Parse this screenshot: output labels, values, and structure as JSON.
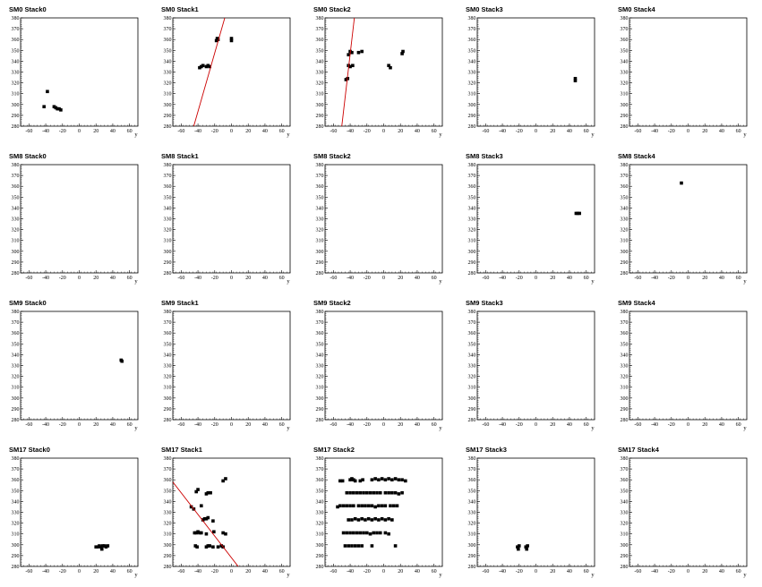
{
  "chart_data": [
    {
      "title": "SM0 Stack0",
      "type": "scatter",
      "xlabel": "y",
      "ylabel": "",
      "xlim": [
        -70,
        70
      ],
      "ylim": [
        280,
        380
      ],
      "xticks": [
        -60,
        -40,
        -20,
        0,
        20,
        40,
        60
      ],
      "yticks": [
        280,
        290,
        300,
        310,
        320,
        330,
        340,
        350,
        360,
        370,
        380
      ],
      "points": [
        [
          -38,
          312
        ],
        [
          -42,
          298
        ],
        [
          -30,
          298
        ],
        [
          -28,
          297
        ],
        [
          -26,
          296
        ],
        [
          -24,
          296
        ],
        [
          -22,
          295
        ]
      ],
      "fit": null
    },
    {
      "title": "SM0 Stack1",
      "type": "scatter",
      "xlabel": "y",
      "ylabel": "",
      "xlim": [
        -70,
        70
      ],
      "ylim": [
        280,
        380
      ],
      "xticks": [
        -60,
        -40,
        -20,
        0,
        20,
        40,
        60
      ],
      "yticks": [
        280,
        290,
        300,
        310,
        320,
        330,
        340,
        350,
        360,
        370,
        380
      ],
      "points": [
        [
          -18,
          359
        ],
        [
          -17,
          361
        ],
        [
          -16,
          360
        ],
        [
          0,
          359
        ],
        [
          0,
          361
        ],
        [
          -38,
          334
        ],
        [
          -36,
          335
        ],
        [
          -34,
          336
        ],
        [
          -30,
          335
        ],
        [
          -28,
          336
        ],
        [
          -26,
          335
        ]
      ],
      "fit": {
        "x1": -45,
        "y1": 280,
        "x2": -8,
        "y2": 380
      }
    },
    {
      "title": "SM0 Stack2",
      "type": "scatter",
      "xlabel": "y",
      "ylabel": "",
      "xlim": [
        -70,
        70
      ],
      "ylim": [
        280,
        380
      ],
      "xticks": [
        -60,
        -40,
        -20,
        0,
        20,
        40,
        60
      ],
      "yticks": [
        280,
        290,
        300,
        310,
        320,
        330,
        340,
        350,
        360,
        370,
        380
      ],
      "points": [
        [
          -42,
          346
        ],
        [
          -40,
          349
        ],
        [
          -38,
          348
        ],
        [
          -30,
          348
        ],
        [
          -26,
          349
        ],
        [
          -42,
          336
        ],
        [
          -40,
          335
        ],
        [
          -37,
          336
        ],
        [
          -45,
          323
        ],
        [
          -43,
          324
        ],
        [
          6,
          336
        ],
        [
          8,
          334
        ],
        [
          22,
          347
        ],
        [
          23,
          349
        ]
      ],
      "fit": {
        "x1": -50,
        "y1": 280,
        "x2": -35,
        "y2": 380
      }
    },
    {
      "title": "SM0 Stack3",
      "type": "scatter",
      "xlabel": "y",
      "ylabel": "",
      "xlim": [
        -70,
        70
      ],
      "ylim": [
        280,
        380
      ],
      "xticks": [
        -60,
        -40,
        -20,
        0,
        20,
        40,
        60
      ],
      "yticks": [
        280,
        290,
        300,
        310,
        320,
        330,
        340,
        350,
        360,
        370,
        380
      ],
      "points": [
        [
          47,
          322
        ],
        [
          47,
          324
        ]
      ],
      "fit": null
    },
    {
      "title": "SM0 Stack4",
      "type": "scatter",
      "xlabel": "y",
      "ylabel": "",
      "xlim": [
        -70,
        70
      ],
      "ylim": [
        280,
        380
      ],
      "xticks": [
        -60,
        -40,
        -20,
        0,
        20,
        40,
        60
      ],
      "yticks": [
        280,
        290,
        300,
        310,
        320,
        330,
        340,
        350,
        360,
        370,
        380
      ],
      "points": [],
      "fit": null
    },
    {
      "title": "SM8 Stack0",
      "type": "scatter",
      "xlabel": "y",
      "ylabel": "",
      "xlim": [
        -70,
        70
      ],
      "ylim": [
        280,
        380
      ],
      "xticks": [
        -60,
        -40,
        -20,
        0,
        20,
        40,
        60
      ],
      "yticks": [
        280,
        290,
        300,
        310,
        320,
        330,
        340,
        350,
        360,
        370,
        380
      ],
      "points": [],
      "fit": null
    },
    {
      "title": "SM8 Stack1",
      "type": "scatter",
      "xlabel": "y",
      "ylabel": "",
      "xlim": [
        -70,
        70
      ],
      "ylim": [
        280,
        380
      ],
      "xticks": [
        -60,
        -40,
        -20,
        0,
        20,
        40,
        60
      ],
      "yticks": [
        280,
        290,
        300,
        310,
        320,
        330,
        340,
        350,
        360,
        370,
        380
      ],
      "points": [],
      "fit": null
    },
    {
      "title": "SM8 Stack2",
      "type": "scatter",
      "xlabel": "y",
      "ylabel": "",
      "xlim": [
        -70,
        70
      ],
      "ylim": [
        280,
        380
      ],
      "xticks": [
        -60,
        -40,
        -20,
        0,
        20,
        40,
        60
      ],
      "yticks": [
        280,
        290,
        300,
        310,
        320,
        330,
        340,
        350,
        360,
        370,
        380
      ],
      "points": [],
      "fit": null
    },
    {
      "title": "SM8 Stack3",
      "type": "scatter",
      "xlabel": "y",
      "ylabel": "",
      "xlim": [
        -70,
        70
      ],
      "ylim": [
        280,
        380
      ],
      "xticks": [
        -60,
        -40,
        -20,
        0,
        20,
        40,
        60
      ],
      "yticks": [
        280,
        290,
        300,
        310,
        320,
        330,
        340,
        350,
        360,
        370,
        380
      ],
      "points": [
        [
          48,
          335
        ],
        [
          50,
          335
        ],
        [
          52,
          335
        ]
      ],
      "fit": null
    },
    {
      "title": "SM8 Stack4",
      "type": "scatter",
      "xlabel": "y",
      "ylabel": "",
      "xlim": [
        -70,
        70
      ],
      "ylim": [
        280,
        380
      ],
      "xticks": [
        -60,
        -40,
        -20,
        0,
        20,
        40,
        60
      ],
      "yticks": [
        280,
        290,
        300,
        310,
        320,
        330,
        340,
        350,
        360,
        370,
        380
      ],
      "points": [
        [
          -8,
          363
        ]
      ],
      "fit": null
    },
    {
      "title": "SM9 Stack0",
      "type": "scatter",
      "xlabel": "y",
      "ylabel": "",
      "xlim": [
        -70,
        70
      ],
      "ylim": [
        280,
        380
      ],
      "xticks": [
        -60,
        -40,
        -20,
        0,
        20,
        40,
        60
      ],
      "yticks": [
        280,
        290,
        300,
        310,
        320,
        330,
        340,
        350,
        360,
        370,
        380
      ],
      "points": [
        [
          50,
          335
        ],
        [
          51,
          334
        ]
      ],
      "fit": null
    },
    {
      "title": "SM9 Stack1",
      "type": "scatter",
      "xlabel": "y",
      "ylabel": "",
      "xlim": [
        -70,
        70
      ],
      "ylim": [
        280,
        380
      ],
      "xticks": [
        -60,
        -40,
        -20,
        0,
        20,
        40,
        60
      ],
      "yticks": [
        280,
        290,
        300,
        310,
        320,
        330,
        340,
        350,
        360,
        370,
        380
      ],
      "points": [],
      "fit": null
    },
    {
      "title": "SM9 Stack2",
      "type": "scatter",
      "xlabel": "y",
      "ylabel": "",
      "xlim": [
        -70,
        70
      ],
      "ylim": [
        280,
        380
      ],
      "xticks": [
        -60,
        -40,
        -20,
        0,
        20,
        40,
        60
      ],
      "yticks": [
        280,
        290,
        300,
        310,
        320,
        330,
        340,
        350,
        360,
        370,
        380
      ],
      "points": [],
      "fit": null
    },
    {
      "title": "SM9 Stack3",
      "type": "scatter",
      "xlabel": "y",
      "ylabel": "",
      "xlim": [
        -70,
        70
      ],
      "ylim": [
        280,
        380
      ],
      "xticks": [
        -60,
        -40,
        -20,
        0,
        20,
        40,
        60
      ],
      "yticks": [
        280,
        290,
        300,
        310,
        320,
        330,
        340,
        350,
        360,
        370,
        380
      ],
      "points": [],
      "fit": null
    },
    {
      "title": "SM9 Stack4",
      "type": "scatter",
      "xlabel": "y",
      "ylabel": "",
      "xlim": [
        -70,
        70
      ],
      "ylim": [
        280,
        380
      ],
      "xticks": [
        -60,
        -40,
        -20,
        0,
        20,
        40,
        60
      ],
      "yticks": [
        280,
        290,
        300,
        310,
        320,
        330,
        340,
        350,
        360,
        370,
        380
      ],
      "points": [],
      "fit": null
    },
    {
      "title": "SM17 Stack0",
      "type": "scatter",
      "xlabel": "y",
      "ylabel": "",
      "xlim": [
        -70,
        70
      ],
      "ylim": [
        280,
        380
      ],
      "xticks": [
        -60,
        -40,
        -20,
        0,
        20,
        40,
        60
      ],
      "yticks": [
        280,
        290,
        300,
        310,
        320,
        330,
        340,
        350,
        360,
        370,
        380
      ],
      "points": [
        [
          20,
          298
        ],
        [
          22,
          298
        ],
        [
          24,
          299
        ],
        [
          26,
          298
        ],
        [
          28,
          299
        ],
        [
          30,
          299
        ],
        [
          32,
          298
        ],
        [
          34,
          299
        ],
        [
          27,
          296
        ]
      ],
      "fit": null
    },
    {
      "title": "SM17 Stack1",
      "type": "scatter",
      "xlabel": "y",
      "ylabel": "",
      "xlim": [
        -70,
        70
      ],
      "ylim": [
        280,
        380
      ],
      "xticks": [
        -60,
        -40,
        -20,
        0,
        20,
        40,
        60
      ],
      "yticks": [
        280,
        290,
        300,
        310,
        320,
        330,
        340,
        350,
        360,
        370,
        380
      ],
      "points": [
        [
          -10,
          359
        ],
        [
          -7,
          361
        ],
        [
          -42,
          349
        ],
        [
          -40,
          351
        ],
        [
          -30,
          347
        ],
        [
          -28,
          348
        ],
        [
          -25,
          348
        ],
        [
          -48,
          335
        ],
        [
          -45,
          333
        ],
        [
          -36,
          336
        ],
        [
          -34,
          323
        ],
        [
          -32,
          324
        ],
        [
          -30,
          324
        ],
        [
          -28,
          325
        ],
        [
          -22,
          322
        ],
        [
          -44,
          311
        ],
        [
          -42,
          311
        ],
        [
          -40,
          312
        ],
        [
          -38,
          311
        ],
        [
          -36,
          311
        ],
        [
          -30,
          310
        ],
        [
          -21,
          312
        ],
        [
          -10,
          311
        ],
        [
          -7,
          310
        ],
        [
          -43,
          299
        ],
        [
          -41,
          298
        ],
        [
          -30,
          298
        ],
        [
          -28,
          299
        ],
        [
          -26,
          299
        ],
        [
          -22,
          298
        ],
        [
          -16,
          298
        ],
        [
          -12,
          299
        ],
        [
          -10,
          298
        ]
      ],
      "fit": {
        "x1": -70,
        "y1": 358,
        "x2": 8,
        "y2": 280
      }
    },
    {
      "title": "SM17 Stack2",
      "type": "scatter",
      "xlabel": "y",
      "ylabel": "",
      "xlim": [
        -70,
        70
      ],
      "ylim": [
        280,
        380
      ],
      "xticks": [
        -60,
        -40,
        -20,
        0,
        20,
        40,
        60
      ],
      "yticks": [
        280,
        290,
        300,
        310,
        320,
        330,
        340,
        350,
        360,
        370,
        380
      ],
      "points": [
        [
          -52,
          359
        ],
        [
          -49,
          359
        ],
        [
          -40,
          360
        ],
        [
          -38,
          361
        ],
        [
          -36,
          360
        ],
        [
          -34,
          359
        ],
        [
          -28,
          359
        ],
        [
          -25,
          360
        ],
        [
          -14,
          360
        ],
        [
          -10,
          361
        ],
        [
          -6,
          360
        ],
        [
          -2,
          361
        ],
        [
          2,
          360
        ],
        [
          6,
          361
        ],
        [
          10,
          360
        ],
        [
          14,
          361
        ],
        [
          18,
          360
        ],
        [
          22,
          360
        ],
        [
          26,
          359
        ],
        [
          -44,
          348
        ],
        [
          -40,
          348
        ],
        [
          -36,
          348
        ],
        [
          -32,
          348
        ],
        [
          -28,
          348
        ],
        [
          -24,
          348
        ],
        [
          -20,
          348
        ],
        [
          -16,
          348
        ],
        [
          -12,
          348
        ],
        [
          -8,
          348
        ],
        [
          -4,
          348
        ],
        [
          2,
          348
        ],
        [
          6,
          348
        ],
        [
          10,
          348
        ],
        [
          14,
          348
        ],
        [
          18,
          347
        ],
        [
          22,
          348
        ],
        [
          -55,
          335
        ],
        [
          -52,
          336
        ],
        [
          -48,
          336
        ],
        [
          -44,
          336
        ],
        [
          -40,
          336
        ],
        [
          -36,
          336
        ],
        [
          -30,
          336
        ],
        [
          -26,
          336
        ],
        [
          -22,
          336
        ],
        [
          -18,
          336
        ],
        [
          -14,
          336
        ],
        [
          -10,
          335
        ],
        [
          -6,
          336
        ],
        [
          -2,
          336
        ],
        [
          2,
          336
        ],
        [
          8,
          336
        ],
        [
          12,
          336
        ],
        [
          16,
          336
        ],
        [
          -42,
          323
        ],
        [
          -38,
          323
        ],
        [
          -34,
          324
        ],
        [
          -30,
          323
        ],
        [
          -26,
          324
        ],
        [
          -22,
          323
        ],
        [
          -18,
          324
        ],
        [
          -14,
          323
        ],
        [
          -10,
          324
        ],
        [
          -6,
          323
        ],
        [
          -2,
          324
        ],
        [
          2,
          323
        ],
        [
          6,
          324
        ],
        [
          10,
          323
        ],
        [
          -48,
          311
        ],
        [
          -44,
          311
        ],
        [
          -40,
          311
        ],
        [
          -36,
          311
        ],
        [
          -32,
          311
        ],
        [
          -28,
          311
        ],
        [
          -24,
          311
        ],
        [
          -20,
          311
        ],
        [
          -16,
          310
        ],
        [
          -12,
          311
        ],
        [
          -8,
          311
        ],
        [
          -4,
          311
        ],
        [
          2,
          311
        ],
        [
          6,
          310
        ],
        [
          -46,
          299
        ],
        [
          -42,
          299
        ],
        [
          -38,
          299
        ],
        [
          -34,
          299
        ],
        [
          -30,
          299
        ],
        [
          -26,
          299
        ],
        [
          -14,
          299
        ],
        [
          14,
          299
        ]
      ],
      "fit": null
    },
    {
      "title": "SM17 Stack3",
      "type": "scatter",
      "xlabel": "y",
      "ylabel": "",
      "xlim": [
        -70,
        70
      ],
      "ylim": [
        280,
        380
      ],
      "xticks": [
        -60,
        -40,
        -20,
        0,
        20,
        40,
        60
      ],
      "yticks": [
        280,
        290,
        300,
        310,
        320,
        330,
        340,
        350,
        360,
        370,
        380
      ],
      "points": [
        [
          -22,
          298
        ],
        [
          -20,
          299
        ],
        [
          -12,
          298
        ],
        [
          -10,
          299
        ],
        [
          -21,
          296
        ],
        [
          -11,
          296
        ]
      ],
      "fit": null
    },
    {
      "title": "SM17 Stack4",
      "type": "scatter",
      "xlabel": "y",
      "ylabel": "",
      "xlim": [
        -70,
        70
      ],
      "ylim": [
        280,
        380
      ],
      "xticks": [
        -60,
        -40,
        -20,
        0,
        20,
        40,
        60
      ],
      "yticks": [
        280,
        290,
        300,
        310,
        320,
        330,
        340,
        350,
        360,
        370,
        380
      ],
      "points": [],
      "fit": null
    }
  ],
  "colors": {
    "marker": "#000000",
    "fit": "#cc0000",
    "axis": "#000000"
  }
}
